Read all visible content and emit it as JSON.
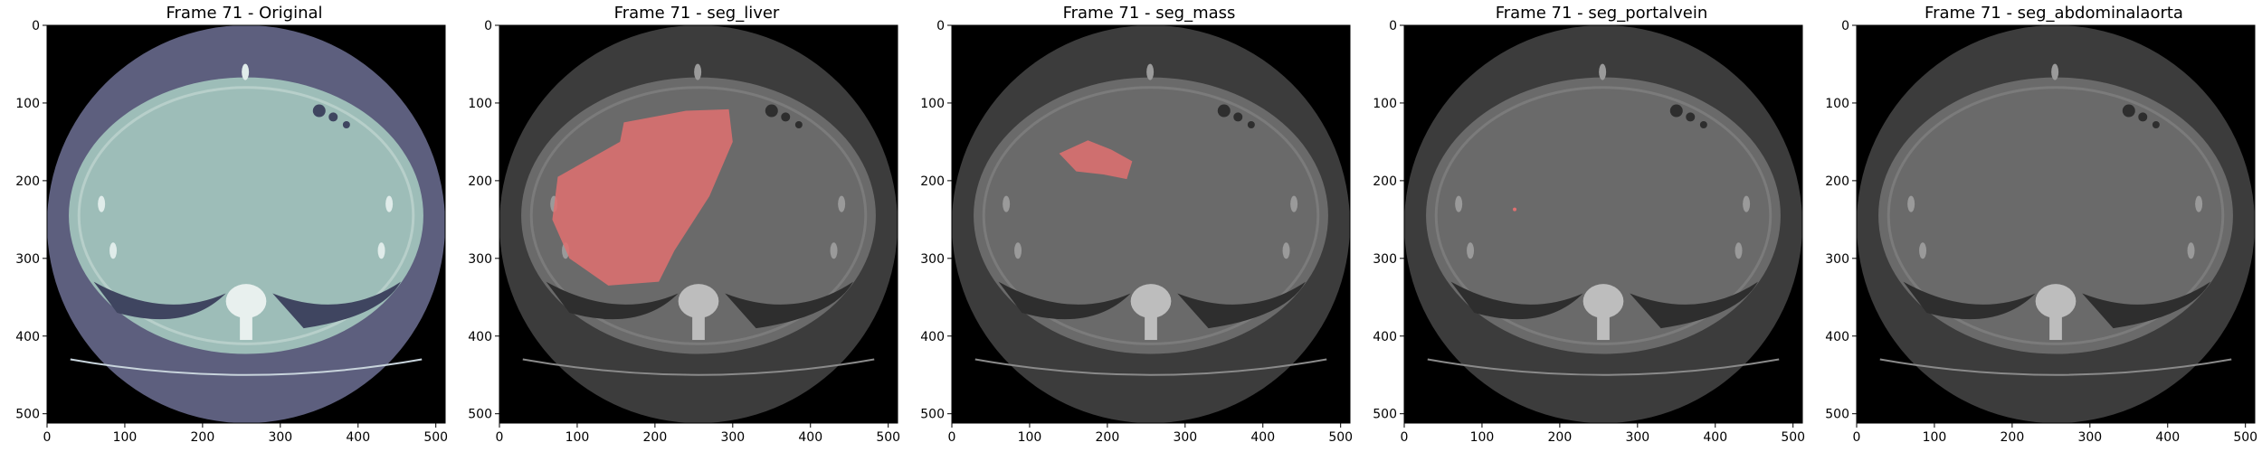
{
  "figure": {
    "panels": [
      {
        "title": "Frame 71 - Original",
        "style": "original",
        "overlay": "none"
      },
      {
        "title": "Frame 71 - seg_liver",
        "style": "gray",
        "overlay": "liver"
      },
      {
        "title": "Frame 71 - seg_mass",
        "style": "gray",
        "overlay": "mass"
      },
      {
        "title": "Frame 71 - seg_portalvein",
        "style": "gray",
        "overlay": "portalvein"
      },
      {
        "title": "Frame 71 - seg_abdominalaorta",
        "style": "gray",
        "overlay": "none"
      }
    ],
    "x_ticks": [
      "0",
      "100",
      "200",
      "300",
      "400",
      "500"
    ],
    "y_ticks": [
      "0",
      "100",
      "200",
      "300",
      "400",
      "500"
    ],
    "axis_range": [
      0,
      512
    ],
    "overlay_color": "#e07070",
    "original_tint": "#9dbdb8",
    "grid": false
  }
}
